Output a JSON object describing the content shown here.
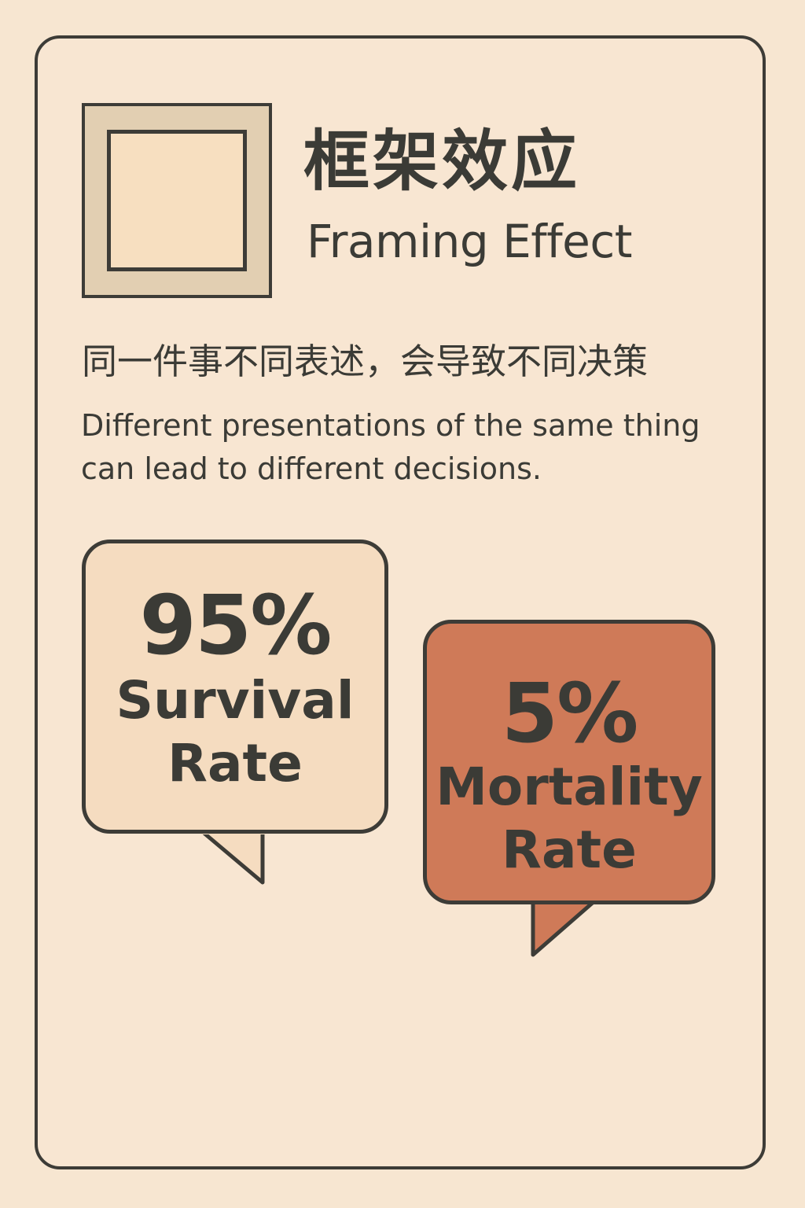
{
  "title": {
    "chinese": "框架效应",
    "english": "Framing Effect"
  },
  "subtitle": {
    "chinese": "同一件事不同表述，会导致不同决策",
    "english": "Different presentations of the same thing\ncan lead to different decisions."
  },
  "bubbles": {
    "left": {
      "value": "95%",
      "label": "Survival\nRate"
    },
    "right": {
      "value": "5%",
      "label": "Mortality\nRate"
    }
  },
  "colors": {
    "background": "#f7e6d1",
    "outline": "#3d3c37",
    "text": "#3b3b36",
    "left_bubble": "#f5dcc0",
    "right_bubble": "#cf7a58",
    "icon_frame": "#e2cfb2"
  },
  "icons": {
    "frame": "frame-icon"
  }
}
